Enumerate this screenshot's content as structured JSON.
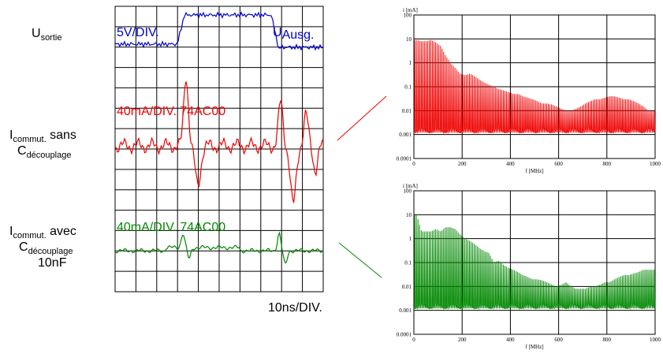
{
  "left_labels": {
    "u_main": "U",
    "u_sub": "sortie",
    "i1_main": "I",
    "i1_sub": "commut.",
    "i1_tail": " sans",
    "c1_main": "C",
    "c1_sub": "découplage",
    "i2_main": "I",
    "i2_sub": "commut.",
    "i2_tail": " avec",
    "c2_main": "C",
    "c2_sub": "découplage",
    "c2_extra": "10nF"
  },
  "scope": {
    "blue_label": "5V/DIV.",
    "blue_label2": "U",
    "blue_label2_sub": "Ausg.",
    "red_label": "40mA/DIV.  74AC00",
    "green_label": "40mA/DIV.  74AC00",
    "time_label": "10ns/DIV.",
    "colors": {
      "blue": "#0000cc",
      "red": "#ee0000",
      "green": "#008800"
    }
  },
  "chart_data": [
    {
      "type": "bar",
      "color": "#ee0000",
      "ylabel": "i [mA]",
      "xlabel": "f [MHz]",
      "yscale": "log",
      "ylim": [
        0.0001,
        100
      ],
      "xlim": [
        0,
        1000
      ],
      "xticks": [
        "0",
        "200",
        "400",
        "600",
        "800",
        "1000"
      ],
      "yticks": [
        "0.0001",
        "0.001",
        "0.01",
        "0.1",
        "1",
        "10",
        "100"
      ],
      "series": [
        {
          "x": [
            10,
            30,
            50,
            70,
            90,
            110,
            130,
            150,
            170,
            190,
            210,
            230,
            250,
            270,
            290,
            310,
            330,
            350,
            370,
            390,
            410,
            430,
            450,
            470,
            490,
            510,
            530,
            550,
            570,
            590,
            610,
            630,
            650,
            670,
            690,
            710,
            730,
            750,
            770,
            790,
            810,
            830,
            850,
            870,
            890,
            910,
            930,
            950,
            970,
            990
          ],
          "values": [
            9,
            8,
            8,
            9,
            7,
            5,
            2,
            1,
            0.6,
            0.35,
            0.3,
            0.35,
            0.28,
            0.2,
            0.15,
            0.12,
            0.1,
            0.08,
            0.07,
            0.06,
            0.05,
            0.05,
            0.04,
            0.035,
            0.03,
            0.025,
            0.02,
            0.02,
            0.018,
            0.015,
            0.012,
            0.01,
            0.01,
            0.012,
            0.015,
            0.02,
            0.025,
            0.03,
            0.03,
            0.035,
            0.04,
            0.04,
            0.035,
            0.03,
            0.03,
            0.025,
            0.02,
            0.015,
            0.01,
            0.01
          ]
        }
      ]
    },
    {
      "type": "bar",
      "color": "#008800",
      "ylabel": "i [mA]",
      "xlabel": "f [MHz]",
      "yscale": "log",
      "ylim": [
        0.0001,
        100
      ],
      "xlim": [
        0,
        1000
      ],
      "xticks": [
        "0",
        "200",
        "400",
        "600",
        "800",
        "1000"
      ],
      "yticks": [
        "0.0001",
        "0.001",
        "0.01",
        "0.1",
        "1",
        "10",
        "100"
      ],
      "series": [
        {
          "x": [
            10,
            30,
            50,
            70,
            90,
            110,
            130,
            150,
            170,
            190,
            210,
            230,
            250,
            270,
            290,
            310,
            330,
            350,
            370,
            390,
            410,
            430,
            450,
            470,
            490,
            510,
            530,
            550,
            570,
            590,
            610,
            630,
            650,
            670,
            690,
            710,
            730,
            750,
            770,
            790,
            810,
            830,
            850,
            870,
            890,
            910,
            930,
            950,
            970,
            990
          ],
          "values": [
            10,
            2,
            2,
            2,
            2.5,
            2,
            3,
            3,
            2.5,
            1.5,
            1,
            0.8,
            0.6,
            0.4,
            0.3,
            0.25,
            0.1,
            0.12,
            0.08,
            0.06,
            0.05,
            0.04,
            0.03,
            0.025,
            0.02,
            0.02,
            0.018,
            0.015,
            0.012,
            0.01,
            0.012,
            0.015,
            0.01,
            0.008,
            0.008,
            0.008,
            0.01,
            0.01,
            0.012,
            0.015,
            0.015,
            0.02,
            0.025,
            0.03,
            0.03,
            0.035,
            0.04,
            0.05,
            0.05,
            0.05
          ]
        }
      ]
    }
  ]
}
